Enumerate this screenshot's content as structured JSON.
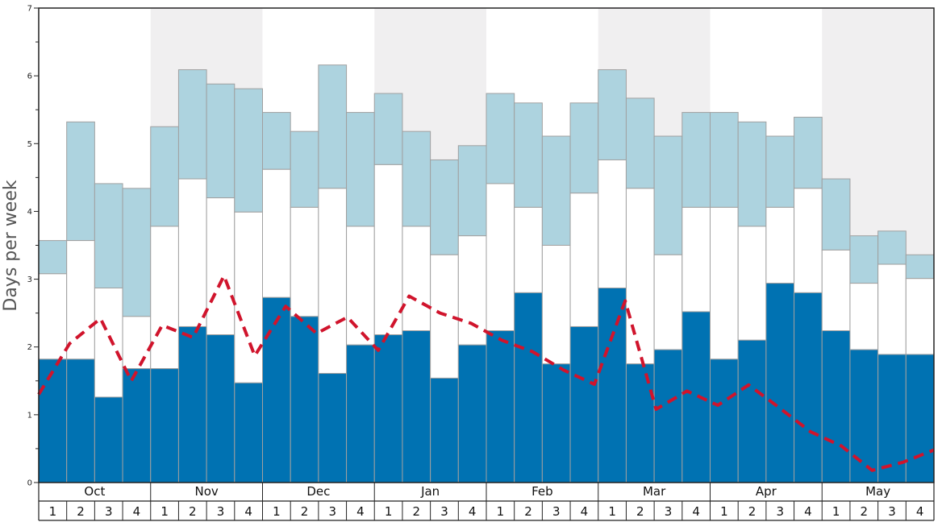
{
  "chart_data": {
    "type": "bar",
    "subtype": "stacked-bar-with-line",
    "title": "",
    "xlabel": "",
    "ylabel": "Days per week",
    "ylim": [
      0,
      7
    ],
    "y_ticks": [
      "0",
      "1",
      "2",
      "3",
      "4",
      "5",
      "6",
      "7"
    ],
    "months": [
      "Oct",
      "Nov",
      "Dec",
      "Jan",
      "Feb",
      "Mar",
      "Apr",
      "May"
    ],
    "weeks": [
      "1",
      "2",
      "3",
      "4"
    ],
    "shaded_months": [
      "Nov",
      "Jan",
      "Mar",
      "May"
    ],
    "colors": {
      "dark_bar": "#0072b2",
      "mid_bar": "#ffffff",
      "light_bar": "#add3df",
      "bar_edge": "#a0a0a0",
      "line": "#d0142c",
      "shade": "#f0eff0"
    },
    "series": [
      {
        "name": "Lower segment (dark blue)",
        "values": [
          1.82,
          1.82,
          1.26,
          1.68,
          1.68,
          2.3,
          2.18,
          1.47,
          2.73,
          2.45,
          1.61,
          2.03,
          2.18,
          2.24,
          1.54,
          2.03,
          2.24,
          2.8,
          1.75,
          2.3,
          2.87,
          1.75,
          1.96,
          2.52,
          1.82,
          2.1,
          2.94,
          2.8,
          2.24,
          1.96,
          1.89,
          1.89
        ]
      },
      {
        "name": "Upper bound of middle segment (white)",
        "values": [
          3.08,
          3.57,
          2.87,
          2.45,
          3.78,
          4.48,
          4.2,
          3.99,
          4.62,
          4.06,
          4.34,
          3.78,
          4.69,
          3.78,
          3.36,
          3.64,
          4.41,
          4.06,
          3.5,
          4.27,
          4.76,
          4.34,
          3.36,
          4.06,
          4.06,
          3.78,
          4.06,
          4.34,
          3.43,
          2.94,
          3.22,
          3.01
        ]
      },
      {
        "name": "Upper bound of top segment (light blue)",
        "values": [
          3.57,
          5.32,
          4.41,
          4.34,
          5.25,
          6.09,
          5.88,
          5.81,
          5.46,
          5.18,
          6.16,
          5.46,
          5.74,
          5.18,
          4.76,
          4.97,
          5.74,
          5.6,
          5.11,
          5.6,
          6.09,
          5.67,
          5.11,
          5.46,
          5.46,
          5.32,
          5.11,
          5.39,
          4.48,
          3.64,
          3.71,
          3.36
        ]
      },
      {
        "name": "Dashed red line",
        "values": [
          1.3,
          2.05,
          2.42,
          1.5,
          2.32,
          2.14,
          3.05,
          1.87,
          2.6,
          2.2,
          2.44,
          1.95,
          2.75,
          2.5,
          2.35,
          2.1,
          1.93,
          1.66,
          1.45,
          2.68,
          1.08,
          1.35,
          1.14,
          1.44,
          1.1,
          0.75,
          0.54,
          0.18,
          0.3,
          0.48
        ]
      }
    ]
  }
}
